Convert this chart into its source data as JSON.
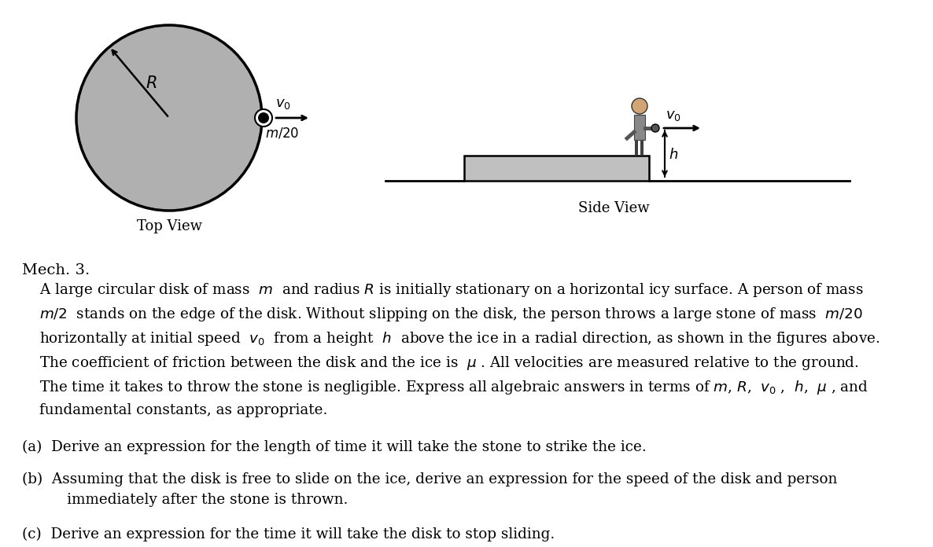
{
  "bg_color": "#ffffff",
  "disk_color": "#b0b0b0",
  "disk_edge_color": "#000000",
  "title_section": "Mech. 3.",
  "top_view_label": "Top View",
  "side_view_label": "Side View",
  "label_R": "$R$",
  "label_v0_top": "$v_0$",
  "label_m20": "$m/20$",
  "label_v0_side": "$v_0$",
  "label_h": "$h$",
  "lines": [
    "A large circular disk of mass  $m$  and radius $R$ is initially stationary on a horizontal icy surface. A person of mass",
    "$m/2$  stands on the edge of the disk. Without slipping on the disk, the person throws a large stone of mass  $m/20$",
    "horizontally at initial speed  $v_0$  from a height  $h$  above the ice in a radial direction, as shown in the figures above.",
    "The coefficient of friction between the disk and the ice is  $\\mu$ . All velocities are measured relative to the ground.",
    "The time it takes to throw the stone is negligible. Express all algebraic answers in terms of $m$, $R$,  $v_0$ ,  $h$,  $\\mu$ , and",
    "fundamental constants, as appropriate."
  ],
  "part_a": "(a)  Derive an expression for the length of time it will take the stone to strike the ice.",
  "part_b1": "(b)  Assuming that the disk is free to slide on the ice, derive an expression for the speed of the disk and person",
  "part_b2": "      immediately after the stone is thrown.",
  "part_c": "(c)  Derive an expression for the time it will take the disk to stop sliding."
}
